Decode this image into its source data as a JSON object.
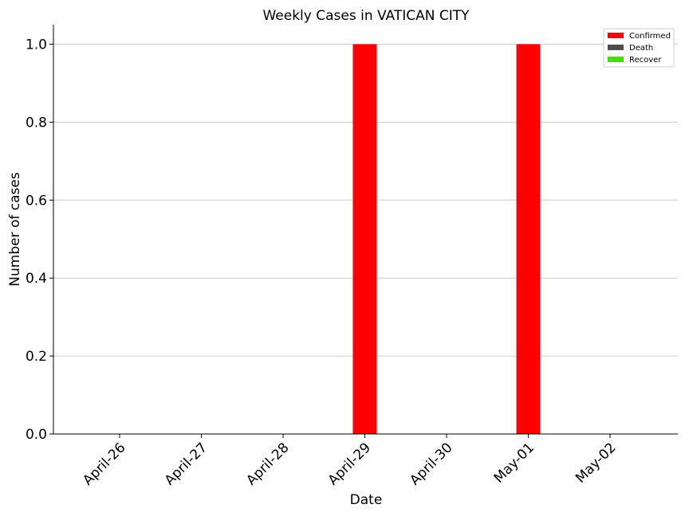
{
  "chart_data": {
    "type": "bar",
    "title": "Weekly Cases in VATICAN CITY",
    "xlabel": "Date",
    "ylabel": "Number of cases",
    "categories": [
      "April-26",
      "April-27",
      "April-28",
      "April-29",
      "April-30",
      "May-01",
      "May-02"
    ],
    "series": [
      {
        "name": "Confirmed",
        "color": "#ff0000",
        "values": [
          0,
          0,
          0,
          1,
          0,
          1,
          0
        ]
      },
      {
        "name": "Death",
        "color": "#4d4d4d",
        "values": [
          0,
          0,
          0,
          0,
          0,
          0,
          0
        ]
      },
      {
        "name": "Recover",
        "color": "#44dd00",
        "values": [
          0,
          0,
          0,
          0,
          0,
          0,
          0
        ]
      }
    ],
    "ylim": [
      0,
      1.05
    ],
    "yticks": [
      "0.0",
      "0.2",
      "0.4",
      "0.6",
      "0.8",
      "1.0"
    ],
    "ytick_values": [
      0,
      0.2,
      0.4,
      0.6,
      0.8,
      1.0
    ],
    "grid": "horizontal",
    "legend_position": "top-right"
  }
}
